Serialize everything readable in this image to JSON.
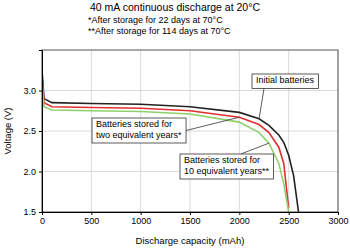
{
  "chart_data": {
    "type": "line",
    "title": "40 mA continuous discharge at 20°C",
    "subtitle": [
      "*After storage for 22 days at 70°C",
      "**After storage for 114 days at 70°C"
    ],
    "x_label": "Discharge capacity (mAh)",
    "y_label": "Voltage (V)",
    "x": [
      0,
      20,
      100,
      500,
      1000,
      1500,
      2000,
      2200,
      2300,
      2400,
      2450,
      2500,
      2550,
      2600
    ],
    "series": [
      {
        "name": "Initial batteries",
        "color": "#222222",
        "values": [
          3.25,
          2.9,
          2.85,
          2.84,
          2.83,
          2.8,
          2.73,
          2.65,
          2.57,
          2.45,
          2.36,
          2.2,
          1.95,
          1.5
        ]
      },
      {
        "name": "Batteries stored for two equivalent years*",
        "color": "#e03030",
        "values": [
          3.2,
          2.85,
          2.8,
          2.79,
          2.78,
          2.75,
          2.67,
          2.58,
          2.48,
          2.3,
          2.1,
          1.55,
          null,
          null
        ]
      },
      {
        "name": "Batteries stored for 10 equivalent years**",
        "color": "#8fd06a",
        "values": [
          3.1,
          2.8,
          2.76,
          2.75,
          2.74,
          2.71,
          2.61,
          2.48,
          2.35,
          2.1,
          1.85,
          1.5,
          null,
          null
        ]
      }
    ],
    "xlim": [
      0,
      3000
    ],
    "xticks": [
      0,
      500,
      1000,
      1500,
      2000,
      2500,
      3000
    ],
    "ylim": [
      1.5,
      3.5
    ],
    "yticks": [
      1.5,
      {
        "value": 2,
        "label": "2.0"
      },
      2.5,
      {
        "value": 3,
        "label": "3.0"
      }
    ],
    "grid": true
  }
}
